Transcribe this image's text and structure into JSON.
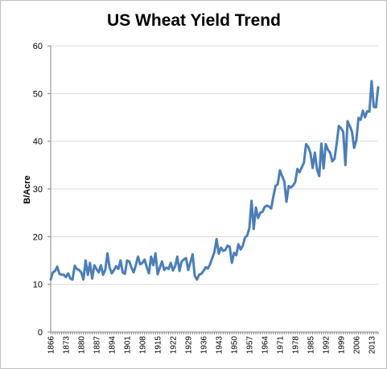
{
  "chart_data": {
    "type": "line",
    "title": "US Wheat Yield Trend",
    "xlabel": "",
    "ylabel": "B/Acre",
    "xlim": [
      1866,
      2016
    ],
    "ylim": [
      0,
      60
    ],
    "yticks": [
      0,
      10,
      20,
      30,
      40,
      50,
      60
    ],
    "xtick_labels": [
      "1866",
      "1873",
      "1880",
      "1887",
      "1894",
      "1901",
      "1908",
      "1915",
      "1922",
      "1929",
      "1936",
      "1943",
      "1950",
      "1957",
      "1964",
      "1971",
      "1978",
      "1985",
      "1992",
      "1999",
      "2006",
      "2013"
    ],
    "grid": true,
    "legend": "none",
    "series": [
      {
        "color": "#4a7ebb",
        "x": [
          1866,
          1867,
          1868,
          1869,
          1870,
          1871,
          1872,
          1873,
          1874,
          1875,
          1876,
          1877,
          1878,
          1879,
          1880,
          1881,
          1882,
          1883,
          1884,
          1885,
          1886,
          1887,
          1888,
          1889,
          1890,
          1891,
          1892,
          1893,
          1894,
          1895,
          1896,
          1897,
          1898,
          1899,
          1900,
          1901,
          1902,
          1903,
          1904,
          1905,
          1906,
          1907,
          1908,
          1909,
          1910,
          1911,
          1912,
          1913,
          1914,
          1915,
          1916,
          1917,
          1918,
          1919,
          1920,
          1921,
          1922,
          1923,
          1924,
          1925,
          1926,
          1927,
          1928,
          1929,
          1930,
          1931,
          1932,
          1933,
          1934,
          1935,
          1936,
          1937,
          1938,
          1939,
          1940,
          1941,
          1942,
          1943,
          1944,
          1945,
          1946,
          1947,
          1948,
          1949,
          1950,
          1951,
          1952,
          1953,
          1954,
          1955,
          1956,
          1957,
          1958,
          1959,
          1960,
          1961,
          1962,
          1963,
          1964,
          1965,
          1966,
          1967,
          1968,
          1969,
          1970,
          1971,
          1972,
          1973,
          1974,
          1975,
          1976,
          1977,
          1978,
          1979,
          1980,
          1981,
          1982,
          1983,
          1984,
          1985,
          1986,
          1987,
          1988,
          1989,
          1990,
          1991,
          1992,
          1993,
          1994,
          1995,
          1996,
          1997,
          1998,
          1999,
          2000,
          2001,
          2002,
          2003,
          2004,
          2005,
          2006,
          2007,
          2008,
          2009,
          2010,
          2011,
          2012,
          2013,
          2014,
          2015,
          2016
        ],
        "values": [
          11.0,
          12.5,
          12.8,
          13.7,
          12.2,
          12.0,
          12.0,
          11.5,
          12.3,
          11.2,
          11.0,
          13.9,
          13.2,
          13.0,
          12.5,
          11.0,
          15.0,
          12.0,
          14.5,
          11.2,
          14.0,
          13.2,
          12.5,
          14.0,
          12.0,
          13.0,
          16.5,
          13.5,
          12.3,
          13.0,
          13.8,
          13.2,
          15.0,
          12.5,
          12.2,
          15.0,
          14.8,
          13.5,
          12.5,
          14.0,
          15.8,
          14.2,
          14.5,
          15.2,
          13.6,
          12.3,
          15.8,
          14.0,
          16.5,
          12.1,
          13.5,
          14.8,
          13.0,
          13.5,
          13.2,
          14.5,
          12.9,
          13.8,
          15.8,
          12.8,
          14.8,
          15.2,
          15.5,
          13.0,
          14.6,
          16.3,
          11.8,
          11.0,
          12.0,
          12.2,
          12.8,
          13.6,
          13.3,
          14.2,
          15.5,
          16.8,
          19.5,
          16.4,
          17.7,
          17.0,
          17.2,
          18.1,
          17.9,
          14.5,
          16.6,
          16.1,
          18.4,
          17.3,
          18.1,
          19.8,
          20.2,
          21.8,
          27.5,
          21.6,
          26.1,
          23.9,
          25.0,
          25.2,
          26.2,
          26.5,
          26.3,
          25.9,
          28.4,
          30.6,
          31.0,
          33.9,
          32.7,
          31.6,
          27.3,
          30.6,
          30.3,
          30.7,
          31.4,
          34.2,
          33.5,
          34.5,
          35.5,
          39.4,
          38.8,
          37.5,
          34.4,
          37.6,
          34.1,
          32.7,
          39.5,
          34.3,
          39.4,
          38.2,
          37.6,
          35.8,
          36.3,
          39.5,
          43.2,
          42.7,
          42.0,
          35.0,
          44.2,
          43.2,
          42.0,
          38.6,
          40.2,
          44.9,
          44.5,
          46.4,
          45.0,
          46.3,
          46.2,
          52.6,
          47.2,
          47.1,
          51.3
        ]
      }
    ]
  }
}
